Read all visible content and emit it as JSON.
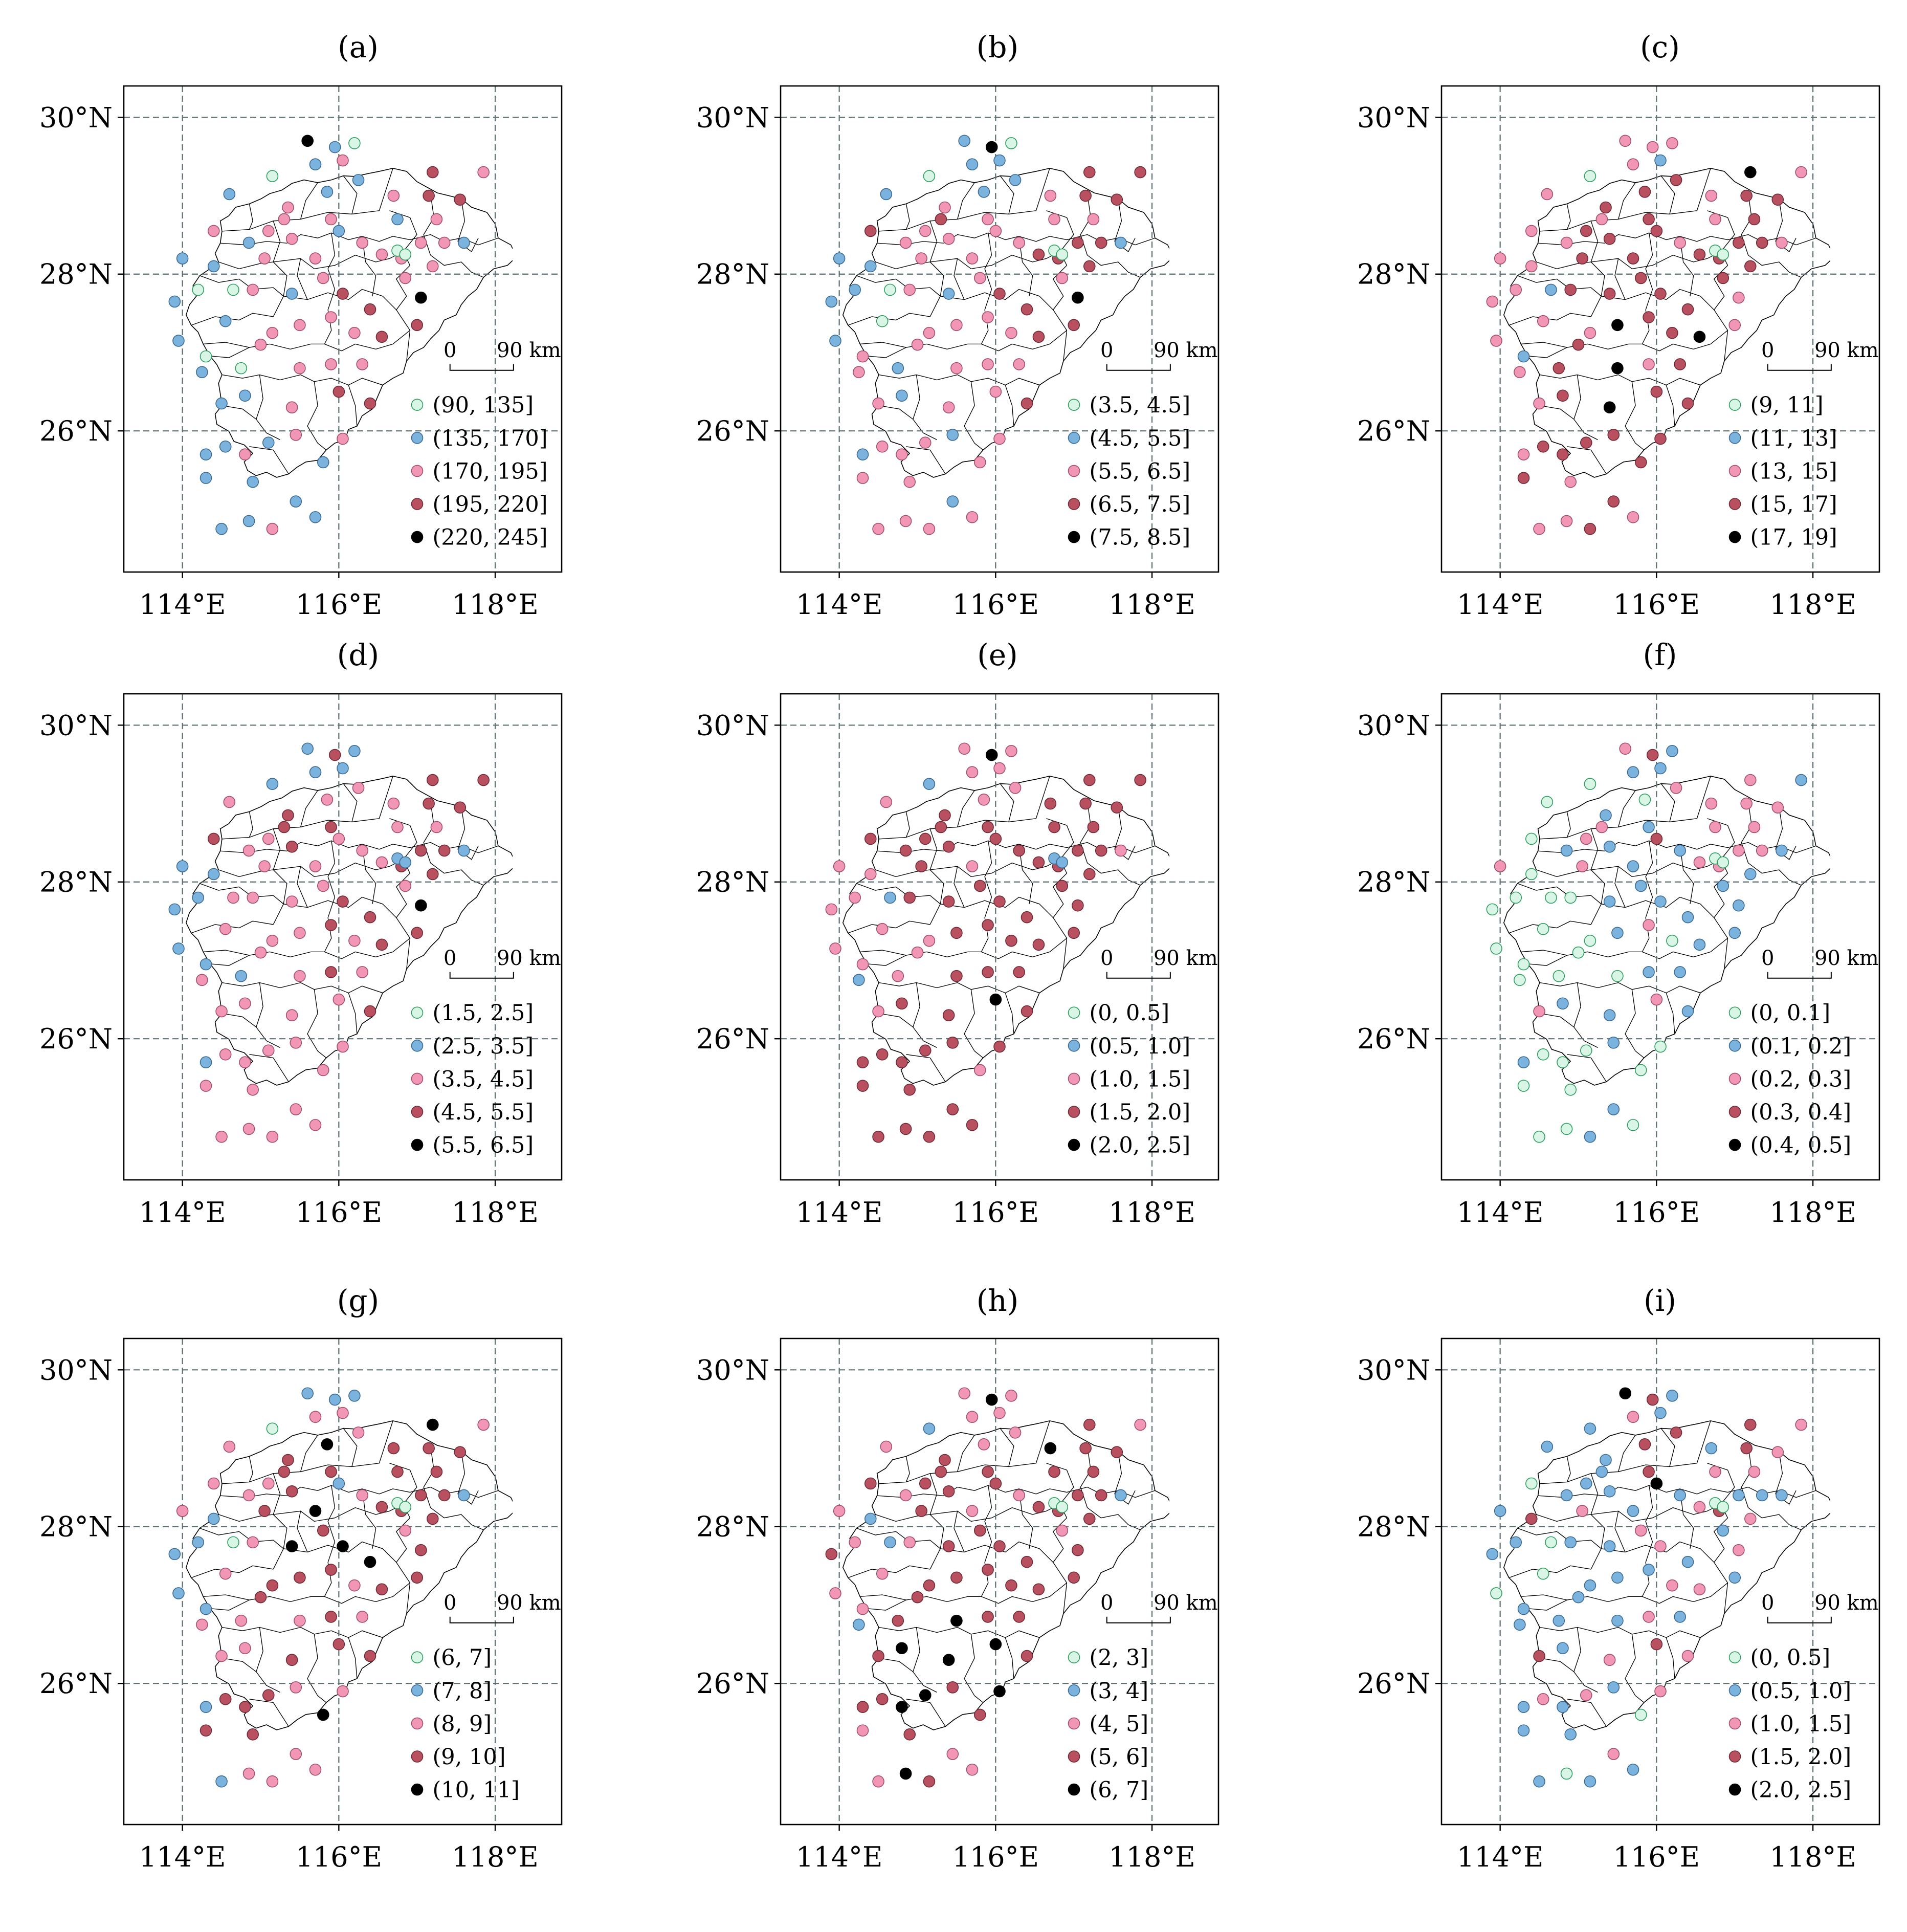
{
  "axis": {
    "x_ticks": [
      {
        "lon": 114,
        "label": "114°E"
      },
      {
        "lon": 116,
        "label": "116°E"
      },
      {
        "lon": 118,
        "label": "118°E"
      }
    ],
    "y_ticks": [
      {
        "lat": 30,
        "label": "30°N"
      },
      {
        "lat": 28,
        "label": "28°N"
      },
      {
        "lat": 26,
        "label": "26°N"
      }
    ],
    "lon_range": [
      113.25,
      118.85
    ],
    "lat_range": [
      24.2,
      30.4
    ],
    "grid": true
  },
  "scale_bar": {
    "zero_label": "0",
    "length_label": "90 km"
  },
  "legend_colors": [
    "#d8f5e6",
    "#7ab3dd",
    "#f296b6",
    "#b8505f",
    "#000000"
  ],
  "legend_outline": [
    "#2c9e5e",
    "#3c6a92",
    "#a05068",
    "#6e2a36",
    "#000000"
  ],
  "stations": [
    [
      115.6,
      29.7
    ],
    [
      115.95,
      29.62
    ],
    [
      116.2,
      29.67
    ],
    [
      115.7,
      29.4
    ],
    [
      116.05,
      29.45
    ],
    [
      115.15,
      29.25
    ],
    [
      114.6,
      29.02
    ],
    [
      115.35,
      28.85
    ],
    [
      115.85,
      29.05
    ],
    [
      116.25,
      29.2
    ],
    [
      116.7,
      29.0
    ],
    [
      117.2,
      29.3
    ],
    [
      117.15,
      29.0
    ],
    [
      117.55,
      28.95
    ],
    [
      117.85,
      29.3
    ],
    [
      114.4,
      28.55
    ],
    [
      114.85,
      28.4
    ],
    [
      115.05,
      28.2
    ],
    [
      115.4,
      28.45
    ],
    [
      115.7,
      28.2
    ],
    [
      116.0,
      28.55
    ],
    [
      115.9,
      28.7
    ],
    [
      116.3,
      28.4
    ],
    [
      116.55,
      28.25
    ],
    [
      116.75,
      28.7
    ],
    [
      117.05,
      28.4
    ],
    [
      117.35,
      28.4
    ],
    [
      117.6,
      28.4
    ],
    [
      117.25,
      28.7
    ],
    [
      116.8,
      28.2
    ],
    [
      114.4,
      28.1
    ],
    [
      114.9,
      27.8
    ],
    [
      115.4,
      27.75
    ],
    [
      115.8,
      27.95
    ],
    [
      116.05,
      27.75
    ],
    [
      116.4,
      27.55
    ],
    [
      116.85,
      27.95
    ],
    [
      117.05,
      27.7
    ],
    [
      113.9,
      27.65
    ],
    [
      114.2,
      27.8
    ],
    [
      114.65,
      27.8
    ],
    [
      114.55,
      27.4
    ],
    [
      115.15,
      27.25
    ],
    [
      115.5,
      27.35
    ],
    [
      115.9,
      27.45
    ],
    [
      116.2,
      27.25
    ],
    [
      116.55,
      27.2
    ],
    [
      117.0,
      27.35
    ],
    [
      113.95,
      27.15
    ],
    [
      114.25,
      26.75
    ],
    [
      114.3,
      26.95
    ],
    [
      114.75,
      26.8
    ],
    [
      115.0,
      27.1
    ],
    [
      115.5,
      26.8
    ],
    [
      115.9,
      26.85
    ],
    [
      116.3,
      26.85
    ],
    [
      114.5,
      26.35
    ],
    [
      114.8,
      26.45
    ],
    [
      115.4,
      26.3
    ],
    [
      116.0,
      26.5
    ],
    [
      116.4,
      26.35
    ],
    [
      116.05,
      25.9
    ],
    [
      114.3,
      25.7
    ],
    [
      114.55,
      25.8
    ],
    [
      114.8,
      25.7
    ],
    [
      115.1,
      25.85
    ],
    [
      115.45,
      25.95
    ],
    [
      115.8,
      25.6
    ],
    [
      114.3,
      25.4
    ],
    [
      114.9,
      25.35
    ],
    [
      115.45,
      25.1
    ],
    [
      114.5,
      24.75
    ],
    [
      114.85,
      24.85
    ],
    [
      115.15,
      24.75
    ],
    [
      115.7,
      24.9
    ],
    [
      116.75,
      28.3
    ],
    [
      116.85,
      28.25
    ],
    [
      115.3,
      28.7
    ],
    [
      114.0,
      28.2
    ],
    [
      117.2,
      28.1
    ],
    [
      115.1,
      28.55
    ]
  ],
  "panels": [
    {
      "title": "(a)",
      "legend": [
        "(90, 135]",
        "(135, 170]",
        "(170, 195]",
        "(195, 220]",
        "(220, 245]"
      ],
      "classes": [
        4,
        1,
        0,
        1,
        2,
        0,
        1,
        2,
        1,
        1,
        2,
        3,
        3,
        3,
        2,
        2,
        1,
        2,
        2,
        2,
        1,
        2,
        2,
        2,
        1,
        2,
        2,
        1,
        2,
        2,
        1,
        2,
        1,
        2,
        3,
        3,
        2,
        4,
        1,
        0,
        0,
        1,
        2,
        2,
        2,
        2,
        3,
        3,
        1,
        1,
        0,
        0,
        2,
        2,
        2,
        2,
        1,
        1,
        2,
        3,
        3,
        2,
        1,
        1,
        2,
        1,
        2,
        1,
        1,
        1,
        1,
        1,
        1,
        2,
        1,
        0,
        0,
        2,
        1,
        2,
        2
      ]
    },
    {
      "title": "(b)",
      "legend": [
        "(3.5, 4.5]",
        "(4.5, 5.5]",
        "(5.5, 6.5]",
        "(6.5, 7.5]",
        "(7.5, 8.5]"
      ],
      "classes": [
        1,
        4,
        0,
        1,
        1,
        0,
        1,
        2,
        1,
        1,
        2,
        3,
        3,
        3,
        3,
        3,
        2,
        2,
        2,
        2,
        2,
        2,
        2,
        3,
        2,
        3,
        3,
        1,
        2,
        3,
        1,
        2,
        1,
        2,
        3,
        3,
        2,
        4,
        1,
        1,
        0,
        0,
        2,
        2,
        2,
        2,
        3,
        3,
        1,
        2,
        2,
        1,
        2,
        2,
        2,
        2,
        2,
        1,
        2,
        2,
        3,
        2,
        1,
        2,
        2,
        2,
        1,
        2,
        2,
        2,
        1,
        2,
        2,
        2,
        2,
        0,
        0,
        3,
        1,
        3,
        2
      ]
    },
    {
      "title": "(c)",
      "legend": [
        "(9, 11]",
        "(11, 13]",
        "(13, 15]",
        "(15, 17]",
        "(17, 19]"
      ],
      "classes": [
        2,
        2,
        2,
        2,
        1,
        0,
        2,
        3,
        3,
        3,
        2,
        4,
        3,
        3,
        2,
        2,
        2,
        3,
        3,
        3,
        3,
        3,
        2,
        3,
        2,
        3,
        3,
        2,
        3,
        3,
        2,
        3,
        3,
        3,
        3,
        3,
        3,
        2,
        2,
        2,
        1,
        2,
        2,
        4,
        3,
        3,
        4,
        2,
        2,
        2,
        1,
        3,
        3,
        4,
        2,
        3,
        2,
        3,
        4,
        3,
        3,
        3,
        2,
        3,
        3,
        3,
        3,
        3,
        3,
        2,
        3,
        2,
        2,
        3,
        2,
        0,
        0,
        2,
        2,
        3,
        3
      ]
    },
    {
      "title": "(d)",
      "legend": [
        "(1.5, 2.5]",
        "(2.5, 3.5]",
        "(3.5, 4.5]",
        "(4.5, 5.5]",
        "(5.5, 6.5]"
      ],
      "classes": [
        1,
        3,
        1,
        1,
        1,
        1,
        2,
        3,
        2,
        2,
        2,
        3,
        3,
        3,
        3,
        3,
        2,
        2,
        3,
        2,
        2,
        3,
        2,
        2,
        2,
        3,
        3,
        1,
        2,
        3,
        1,
        2,
        2,
        2,
        3,
        3,
        2,
        4,
        1,
        1,
        2,
        2,
        2,
        2,
        3,
        2,
        3,
        3,
        1,
        2,
        1,
        1,
        2,
        2,
        3,
        2,
        2,
        2,
        2,
        2,
        3,
        2,
        1,
        2,
        2,
        2,
        2,
        2,
        2,
        2,
        2,
        2,
        2,
        2,
        2,
        1,
        1,
        3,
        1,
        3,
        2
      ]
    },
    {
      "title": "(e)",
      "legend": [
        "(0, 0.5]",
        "(0.5, 1.0]",
        "(1.0, 1.5]",
        "(1.5, 2.0]",
        "(2.0, 2.5]"
      ],
      "classes": [
        2,
        4,
        2,
        2,
        2,
        1,
        2,
        3,
        2,
        2,
        3,
        3,
        3,
        3,
        3,
        3,
        3,
        3,
        3,
        2,
        3,
        3,
        3,
        3,
        3,
        3,
        3,
        2,
        3,
        3,
        2,
        3,
        3,
        3,
        3,
        3,
        3,
        3,
        2,
        2,
        1,
        2,
        2,
        3,
        3,
        3,
        3,
        3,
        2,
        1,
        2,
        2,
        2,
        3,
        3,
        3,
        2,
        3,
        3,
        4,
        3,
        3,
        3,
        3,
        3,
        3,
        3,
        2,
        3,
        3,
        3,
        3,
        3,
        3,
        3,
        1,
        1,
        3,
        2,
        3,
        3
      ]
    },
    {
      "title": "(f)",
      "legend": [
        "(0, 0.1]",
        "(0.1, 0.2]",
        "(0.2, 0.3]",
        "(0.3, 0.4]",
        "(0.4, 0.5]"
      ],
      "classes": [
        2,
        3,
        1,
        1,
        1,
        0,
        0,
        1,
        0,
        2,
        2,
        2,
        2,
        2,
        1,
        0,
        1,
        2,
        1,
        1,
        3,
        1,
        1,
        2,
        2,
        2,
        2,
        1,
        2,
        2,
        0,
        0,
        1,
        1,
        1,
        1,
        1,
        1,
        0,
        0,
        0,
        0,
        0,
        1,
        2,
        0,
        1,
        1,
        0,
        0,
        0,
        0,
        0,
        0,
        1,
        1,
        2,
        1,
        1,
        2,
        1,
        0,
        1,
        0,
        0,
        0,
        1,
        0,
        0,
        0,
        1,
        0,
        0,
        1,
        0,
        0,
        0,
        2,
        2,
        1,
        2
      ]
    },
    {
      "title": "(g)",
      "legend": [
        "(6, 7]",
        "(7, 8]",
        "(8, 9]",
        "(9, 10]",
        "(10, 11]"
      ],
      "classes": [
        1,
        1,
        1,
        2,
        2,
        0,
        2,
        3,
        4,
        2,
        3,
        4,
        3,
        3,
        2,
        2,
        2,
        3,
        3,
        4,
        1,
        3,
        2,
        3,
        3,
        3,
        3,
        1,
        3,
        3,
        1,
        2,
        4,
        3,
        4,
        4,
        2,
        3,
        1,
        1,
        0,
        2,
        3,
        3,
        3,
        2,
        3,
        3,
        1,
        2,
        1,
        2,
        3,
        2,
        3,
        2,
        2,
        2,
        3,
        3,
        3,
        2,
        1,
        3,
        3,
        3,
        2,
        4,
        3,
        3,
        2,
        1,
        2,
        2,
        2,
        0,
        0,
        3,
        2,
        3,
        2
      ]
    },
    {
      "title": "(h)",
      "legend": [
        "(2, 3]",
        "(3, 4]",
        "(4, 5]",
        "(5, 6]",
        "(6, 7]"
      ],
      "classes": [
        2,
        4,
        2,
        2,
        2,
        1,
        2,
        3,
        2,
        2,
        4,
        3,
        3,
        3,
        2,
        3,
        2,
        3,
        3,
        2,
        3,
        3,
        2,
        3,
        3,
        3,
        3,
        1,
        3,
        3,
        1,
        2,
        3,
        3,
        3,
        3,
        2,
        3,
        3,
        2,
        1,
        2,
        3,
        3,
        3,
        3,
        3,
        3,
        2,
        1,
        2,
        3,
        3,
        4,
        3,
        3,
        3,
        4,
        4,
        4,
        3,
        4,
        3,
        3,
        4,
        4,
        3,
        3,
        2,
        3,
        2,
        2,
        4,
        3,
        2,
        0,
        0,
        3,
        2,
        3,
        3
      ]
    },
    {
      "title": "(i)",
      "legend": [
        "(0, 0.5]",
        "(0.5, 1.0]",
        "(1.0, 1.5]",
        "(1.5, 2.0]",
        "(2.0, 2.5]"
      ],
      "classes": [
        4,
        3,
        1,
        2,
        1,
        1,
        1,
        1,
        3,
        3,
        1,
        3,
        3,
        2,
        2,
        0,
        1,
        2,
        1,
        1,
        4,
        3,
        1,
        2,
        2,
        1,
        1,
        1,
        2,
        3,
        3,
        1,
        1,
        2,
        2,
        1,
        1,
        2,
        1,
        1,
        0,
        0,
        1,
        1,
        1,
        2,
        2,
        1,
        0,
        1,
        1,
        1,
        1,
        1,
        2,
        1,
        3,
        1,
        2,
        3,
        2,
        2,
        1,
        2,
        1,
        2,
        1,
        0,
        1,
        1,
        2,
        1,
        0,
        1,
        1,
        0,
        0,
        1,
        1,
        2,
        1
      ]
    }
  ]
}
